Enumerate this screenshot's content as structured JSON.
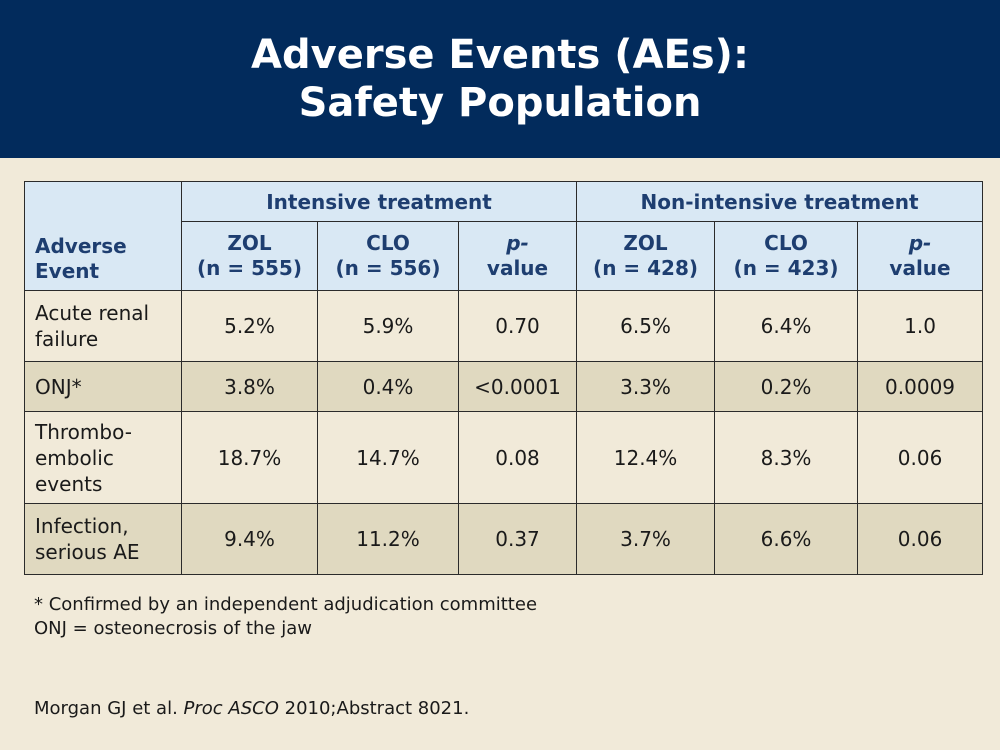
{
  "title": {
    "line1": "Adverse Events (AEs):",
    "line2": "Safety Population"
  },
  "table": {
    "corner_line1": "Adverse",
    "corner_line2": "Event",
    "groups": [
      "Intensive treatment",
      "Non-intensive treatment"
    ],
    "columns": [
      {
        "l1": "ZOL",
        "l2": "(n = 555)"
      },
      {
        "l1": "CLO",
        "l2": "(n = 556)"
      },
      {
        "l1": "p-",
        "l2": "value"
      },
      {
        "l1": "ZOL",
        "l2": "(n = 428)"
      },
      {
        "l1": "CLO",
        "l2": "(n = 423)"
      },
      {
        "l1": "p-",
        "l2": "value"
      }
    ],
    "rows": [
      {
        "label": [
          "Acute renal",
          "failure"
        ],
        "values": [
          "5.2%",
          "5.9%",
          "0.70",
          "6.5%",
          "6.4%",
          "1.0"
        ]
      },
      {
        "label": [
          "ONJ*"
        ],
        "values": [
          "3.8%",
          "0.4%",
          "<0.0001",
          "3.3%",
          "0.2%",
          "0.0009"
        ]
      },
      {
        "label": [
          "Thrombo-",
          "embolic",
          "events"
        ],
        "values": [
          "18.7%",
          "14.7%",
          "0.08",
          "12.4%",
          "8.3%",
          "0.06"
        ]
      },
      {
        "label": [
          "Infection,",
          "serious AE"
        ],
        "values": [
          "9.4%",
          "11.2%",
          "0.37",
          "3.7%",
          "6.6%",
          "0.06"
        ]
      }
    ]
  },
  "footnotes": {
    "line1": "* Confirmed by an independent adjudication committee",
    "line2": "ONJ = osteonecrosis of the jaw"
  },
  "citation": {
    "authors": "Morgan GJ et al. ",
    "journal": "Proc ASCO",
    "rest": " 2010;Abstract 8021."
  },
  "colors": {
    "banner": "#022b5c",
    "header_fill": "#d9e8f4",
    "header_text": "#1e3e70",
    "background": "#f1ead9",
    "row_shade": "#e0d9c0"
  }
}
